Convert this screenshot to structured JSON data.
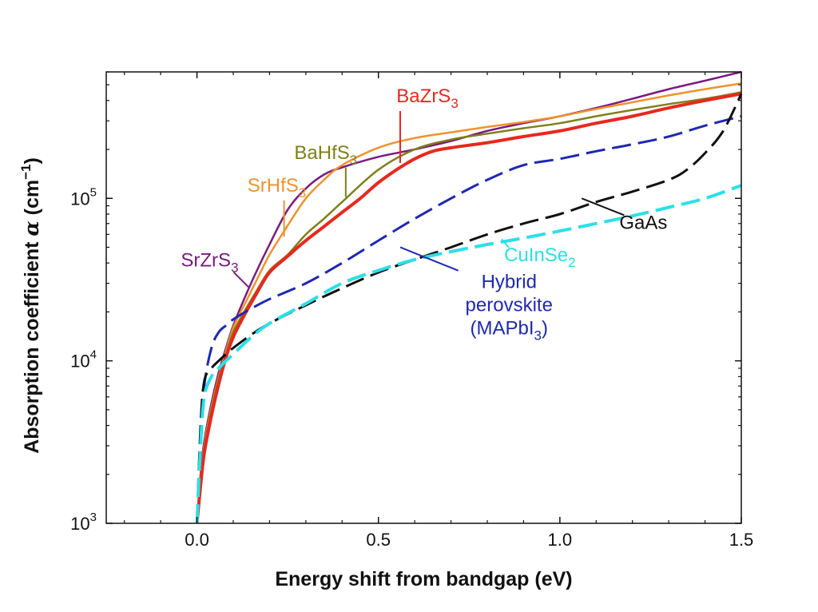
{
  "chart_data": {
    "type": "line",
    "title": "",
    "xlabel": "Energy shift from bandgap (eV)",
    "ylabel": "Absorption coefficient",
    "ylabel_symbol": "α",
    "ylabel_unit_prefix": "(cm",
    "ylabel_unit_exp": "−1",
    "ylabel_unit_suffix": ")",
    "xlim": [
      -0.25,
      1.5
    ],
    "ylim": [
      1000,
      600000
    ],
    "yscale": "log",
    "grid": false,
    "x_ticks": [
      {
        "value": 0.0,
        "label": "0.0"
      },
      {
        "value": 0.5,
        "label": "0.5"
      },
      {
        "value": 1.0,
        "label": "1.0"
      },
      {
        "value": 1.5,
        "label": "1.5"
      }
    ],
    "y_ticks": [
      {
        "value": 1000,
        "base": "10",
        "exp": "3"
      },
      {
        "value": 10000,
        "base": "10",
        "exp": "4"
      },
      {
        "value": 100000,
        "base": "10",
        "exp": "5"
      }
    ],
    "series": [
      {
        "name": "SrZrS3",
        "label_parts": [
          {
            "t": "SrZrS"
          },
          {
            "t": "3",
            "sub": true
          }
        ],
        "color": "#7b1a7f",
        "dash": "solid",
        "width": 2.5,
        "x": [
          0.0,
          0.01,
          0.02,
          0.04,
          0.06,
          0.08,
          0.1,
          0.13,
          0.16,
          0.2,
          0.25,
          0.3,
          0.35,
          0.4,
          0.5,
          0.6,
          0.7,
          0.8,
          0.9,
          1.0,
          1.1,
          1.2,
          1.3,
          1.4,
          1.5
        ],
        "y": [
          1000,
          2000,
          3200,
          5500,
          8500,
          12000,
          16500,
          24000,
          34000,
          52000,
          85000,
          115000,
          140000,
          155000,
          180000,
          200000,
          225000,
          260000,
          290000,
          320000,
          360000,
          410000,
          470000,
          530000,
          600000
        ],
        "label_x": 0.035,
        "label_y": 38000,
        "leader_x": 0.145,
        "leader_y": 28000
      },
      {
        "name": "SrHfS3",
        "label_parts": [
          {
            "t": "SrHfS"
          },
          {
            "t": "3",
            "sub": true
          }
        ],
        "color": "#f0922b",
        "dash": "solid",
        "width": 2.5,
        "x": [
          0.0,
          0.01,
          0.02,
          0.04,
          0.06,
          0.08,
          0.1,
          0.13,
          0.16,
          0.2,
          0.25,
          0.3,
          0.35,
          0.4,
          0.5,
          0.6,
          0.7,
          0.8,
          0.9,
          1.0,
          1.1,
          1.2,
          1.3,
          1.4,
          1.5
        ],
        "y": [
          1000,
          1900,
          3000,
          5200,
          8000,
          11500,
          16000,
          22000,
          30000,
          45000,
          68000,
          100000,
          130000,
          160000,
          205000,
          235000,
          255000,
          275000,
          295000,
          320000,
          355000,
          390000,
          430000,
          470000,
          510000
        ],
        "label_x": 0.22,
        "label_y": 110000,
        "leader_x": 0.24,
        "leader_y": 58000
      },
      {
        "name": "BaHfS3",
        "label_parts": [
          {
            "t": "BaHfS"
          },
          {
            "t": "3",
            "sub": true
          }
        ],
        "color": "#7f7f1a",
        "dash": "solid",
        "width": 2.5,
        "x": [
          0.0,
          0.01,
          0.02,
          0.04,
          0.06,
          0.08,
          0.1,
          0.13,
          0.16,
          0.2,
          0.25,
          0.3,
          0.35,
          0.4,
          0.5,
          0.6,
          0.7,
          0.8,
          0.9,
          1.0,
          1.1,
          1.2,
          1.3,
          1.4,
          1.5
        ],
        "y": [
          1000,
          1800,
          2900,
          5000,
          7800,
          11000,
          15000,
          20000,
          26000,
          36000,
          45000,
          60000,
          75000,
          95000,
          150000,
          200000,
          230000,
          250000,
          270000,
          290000,
          320000,
          350000,
          380000,
          410000,
          450000
        ],
        "label_x": 0.355,
        "label_y": 175000,
        "leader_x": 0.41,
        "leader_y": 102000
      },
      {
        "name": "BaZrS3",
        "label_parts": [
          {
            "t": "BaZrS"
          },
          {
            "t": "3",
            "sub": true
          }
        ],
        "color": "#e8281e",
        "dash": "solid",
        "width": 4,
        "x": [
          0.0,
          0.01,
          0.02,
          0.04,
          0.06,
          0.08,
          0.1,
          0.13,
          0.16,
          0.2,
          0.25,
          0.3,
          0.35,
          0.4,
          0.45,
          0.5,
          0.55,
          0.6,
          0.65,
          0.7,
          0.8,
          0.9,
          1.0,
          1.1,
          1.2,
          1.3,
          1.4,
          1.5
        ],
        "y": [
          1000,
          1700,
          2700,
          4600,
          7200,
          10500,
          14000,
          19000,
          25000,
          35000,
          44000,
          55000,
          67000,
          82000,
          100000,
          125000,
          150000,
          175000,
          195000,
          205000,
          220000,
          240000,
          260000,
          290000,
          320000,
          360000,
          400000,
          440000
        ],
        "label_x": 0.635,
        "label_y": 390000,
        "leader_x": 0.56,
        "leader_y": 165000
      },
      {
        "name": "Hybrid perovskite (MAPbI3)",
        "label_parts": [
          {
            "t": "Hybrid"
          },
          {
            "t": "perovskite"
          },
          {
            "t": "(MAPbI"
          },
          {
            "t": "3",
            "sub": true
          },
          {
            "t": ")"
          }
        ],
        "color": "#1e28b4",
        "dash": "dashed",
        "width": 3,
        "x": [
          0.0,
          0.01,
          0.02,
          0.04,
          0.06,
          0.08,
          0.1,
          0.15,
          0.2,
          0.3,
          0.4,
          0.5,
          0.6,
          0.7,
          0.8,
          0.9,
          1.0,
          1.1,
          1.2,
          1.3,
          1.4,
          1.5
        ],
        "y": [
          1000,
          3000,
          7000,
          12000,
          15000,
          16500,
          18000,
          21000,
          24000,
          30000,
          40000,
          55000,
          75000,
          100000,
          130000,
          160000,
          175000,
          195000,
          215000,
          240000,
          280000,
          320000
        ],
        "label_x": 0.86,
        "label_y": 28000,
        "leader_x": 0.56,
        "leader_y": 50000
      },
      {
        "name": "GaAs",
        "label_parts": [
          {
            "t": "GaAs"
          }
        ],
        "color": "#111111",
        "dash": "dashed",
        "width": 3,
        "x": [
          0.0,
          0.01,
          0.02,
          0.04,
          0.06,
          0.08,
          0.1,
          0.15,
          0.2,
          0.3,
          0.4,
          0.5,
          0.6,
          0.7,
          0.8,
          0.9,
          1.0,
          1.1,
          1.2,
          1.3,
          1.35,
          1.4,
          1.45,
          1.5
        ],
        "y": [
          1000,
          4000,
          7500,
          9000,
          10000,
          11000,
          12000,
          14500,
          17000,
          22000,
          28000,
          35000,
          42000,
          50000,
          60000,
          70000,
          80000,
          95000,
          110000,
          130000,
          150000,
          190000,
          260000,
          440000
        ],
        "label_x": 1.23,
        "label_y": 65000,
        "leader_x": 1.06,
        "leader_y": 100000
      },
      {
        "name": "CuInSe2",
        "label_parts": [
          {
            "t": "CuInSe"
          },
          {
            "t": "2",
            "sub": true
          }
        ],
        "color": "#2ae0e8",
        "dash": "dashed",
        "width": 4,
        "x": [
          0.0,
          0.01,
          0.02,
          0.04,
          0.06,
          0.08,
          0.1,
          0.15,
          0.2,
          0.3,
          0.4,
          0.5,
          0.6,
          0.7,
          0.8,
          0.9,
          1.0,
          1.1,
          1.2,
          1.3,
          1.4,
          1.5
        ],
        "y": [
          1000,
          3000,
          6000,
          8000,
          9000,
          10000,
          11000,
          14000,
          17000,
          22500,
          30000,
          36000,
          42000,
          47000,
          52000,
          57000,
          63000,
          70000,
          78000,
          88000,
          100000,
          120000
        ],
        "label_x": 0.945,
        "label_y": 41000,
        "leader_x": 0.84,
        "leader_y": 56000
      }
    ]
  }
}
